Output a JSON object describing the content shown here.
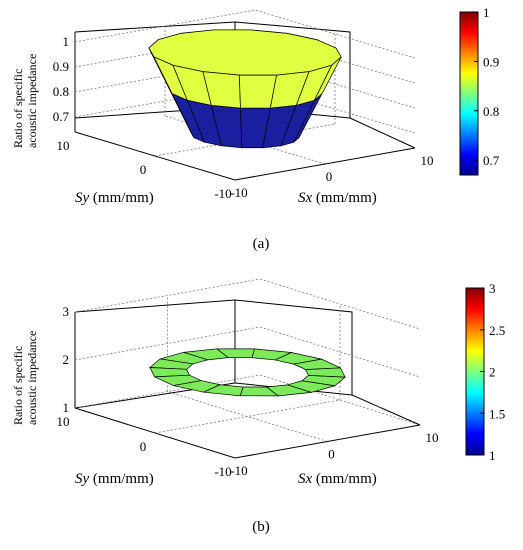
{
  "chart_data": [
    {
      "panel": "a",
      "caption": "(a)",
      "type": "surface3d",
      "shape": "frustum",
      "xlabel": "Sx (mm/mm)",
      "ylabel": "Sy (mm/mm)",
      "zlabel": "Ratio of specific acoustic impedance",
      "xticks": [
        "-10",
        "0",
        "10"
      ],
      "yticks": [
        "10",
        "0",
        "-10"
      ],
      "zticks": [
        "0.7",
        "0.8",
        "0.9",
        "1"
      ],
      "colorbar_ticks": [
        "0.7",
        "0.8",
        "0.9",
        "1"
      ],
      "colorbar_range": [
        0.67,
        1.0
      ],
      "surface": {
        "z_bottom": 0.66,
        "z_top": 0.99,
        "z_color_split": 0.84,
        "r_bottom": 4.5,
        "r_top": 8,
        "segments": 16
      },
      "colors": {
        "upper_band": "#e0ff40",
        "lower_band": "#1a1fa0"
      }
    },
    {
      "panel": "b",
      "caption": "(b)",
      "type": "surface3d",
      "shape": "annulus",
      "xlabel": "Sx (mm/mm)",
      "ylabel": "Sy (mm/mm)",
      "zlabel": "Ratio of specific acoustic impedance",
      "xticks": [
        "-10",
        "0",
        "10"
      ],
      "yticks": [
        "10",
        "0",
        "-10"
      ],
      "zticks": [
        "1",
        "2",
        "3"
      ],
      "colorbar_ticks": [
        "1",
        "1.5",
        "2",
        "2.5",
        "3"
      ],
      "colorbar_range": [
        1,
        3
      ],
      "surface": {
        "z": 1.92,
        "r_inner": 5,
        "r_outer": 8,
        "segments": 16
      },
      "colors": {
        "surface": "#7dea5a"
      }
    }
  ]
}
